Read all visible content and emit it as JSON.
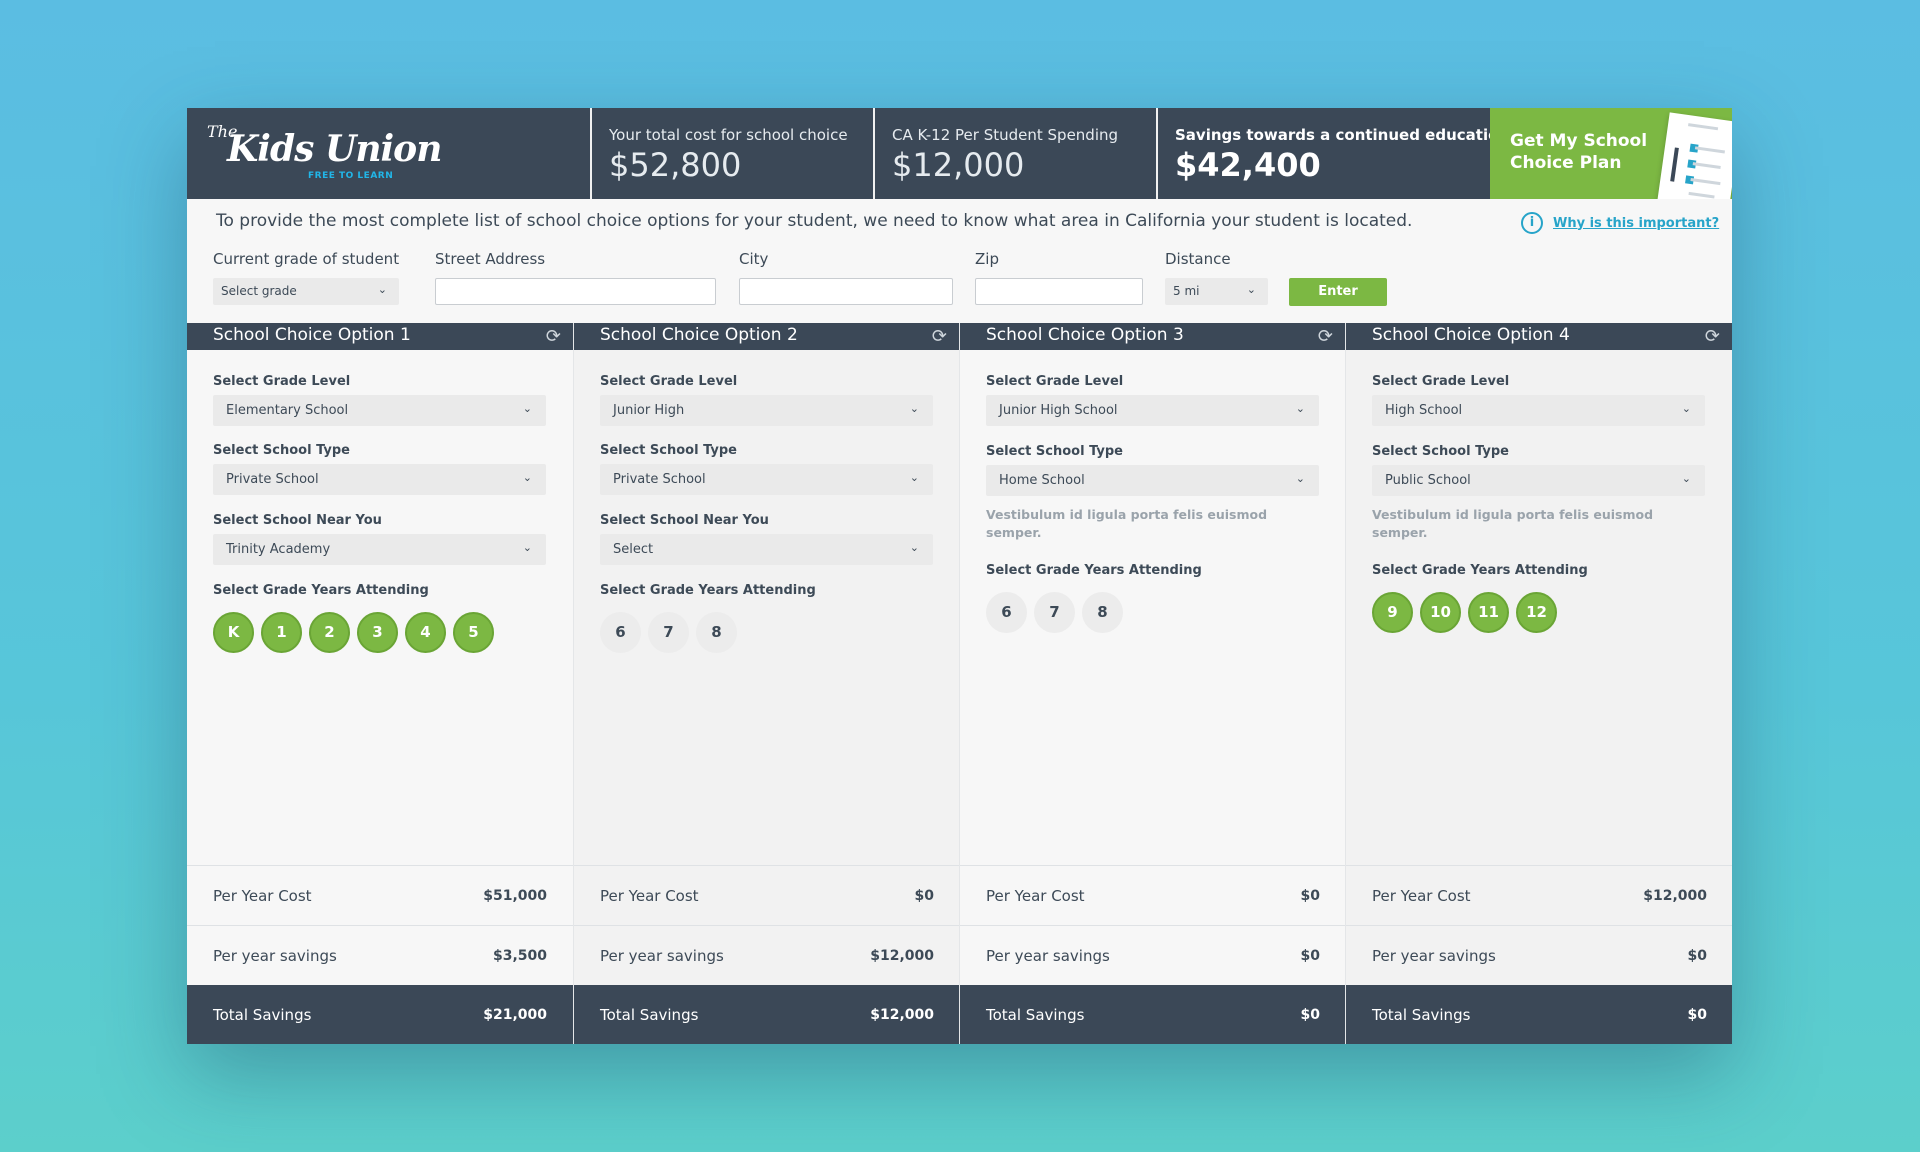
{
  "header": {
    "logo_the": "The",
    "logo_name": "Kids Union",
    "logo_tagline": "FREE TO LEARN",
    "stats": [
      {
        "label": "Your total cost for school choice",
        "value": "$52,800"
      },
      {
        "label": "CA K-12 Per Student Spending",
        "value": "$12,000"
      },
      {
        "label": "Savings towards a continued education",
        "value": "$42,400"
      }
    ],
    "cta_label": "Get My School Choice Plan"
  },
  "intro": {
    "text": "To provide the most complete list of school choice options for your student, we need to know what area in California your student is located.",
    "why_link": "Why is this important?",
    "info_icon": "i"
  },
  "form": {
    "grade_label": "Current grade of student",
    "grade_value": "Select grade",
    "street_label": "Street Address",
    "street_value": "",
    "city_label": "City",
    "city_value": "",
    "zip_label": "Zip",
    "zip_value": "",
    "distance_label": "Distance",
    "distance_value": "5 mi",
    "enter_label": "Enter"
  },
  "labels": {
    "grade_level": "Select Grade Level",
    "school_type": "Select School Type",
    "school_near": "Select School Near You",
    "grade_years": "Select Grade Years Attending",
    "per_year_cost": "Per Year Cost",
    "per_year_savings": "Per year savings",
    "total_savings": "Total Savings"
  },
  "options": [
    {
      "title": "School Choice Option 1",
      "grade_level": "Elementary School",
      "school_type": "Private School",
      "school_near": "Trinity Academy",
      "note": "",
      "years": [
        {
          "label": "K",
          "selected": true
        },
        {
          "label": "1",
          "selected": true
        },
        {
          "label": "2",
          "selected": true
        },
        {
          "label": "3",
          "selected": true
        },
        {
          "label": "4",
          "selected": true
        },
        {
          "label": "5",
          "selected": true
        }
      ],
      "per_year_cost": "$51,000",
      "per_year_savings": "$3,500",
      "total_savings": "$21,000"
    },
    {
      "title": "School Choice Option 2",
      "grade_level": "Junior High",
      "school_type": "Private School",
      "school_near": "Select",
      "note": "",
      "years": [
        {
          "label": "6",
          "selected": false
        },
        {
          "label": "7",
          "selected": false
        },
        {
          "label": "8",
          "selected": false
        }
      ],
      "per_year_cost": "$0",
      "per_year_savings": "$12,000",
      "total_savings": "$12,000"
    },
    {
      "title": "School Choice Option 3",
      "grade_level": "Junior High School",
      "school_type": "Home School",
      "school_near": "",
      "note": "Vestibulum id ligula porta felis euismod semper.",
      "years": [
        {
          "label": "6",
          "selected": false
        },
        {
          "label": "7",
          "selected": false
        },
        {
          "label": "8",
          "selected": false
        }
      ],
      "per_year_cost": "$0",
      "per_year_savings": "$0",
      "total_savings": "$0"
    },
    {
      "title": "School Choice Option 4",
      "grade_level": "High School",
      "school_type": "Public School",
      "school_near": "",
      "note": "Vestibulum id ligula porta felis euismod semper.",
      "years": [
        {
          "label": "9",
          "selected": true
        },
        {
          "label": "10",
          "selected": true
        },
        {
          "label": "11",
          "selected": true
        },
        {
          "label": "12",
          "selected": true
        }
      ],
      "per_year_cost": "$12,000",
      "per_year_savings": "$0",
      "total_savings": "$0"
    }
  ],
  "colors": {
    "navy": "#3b4857",
    "green": "#7cb843",
    "link": "#27a4c9"
  }
}
